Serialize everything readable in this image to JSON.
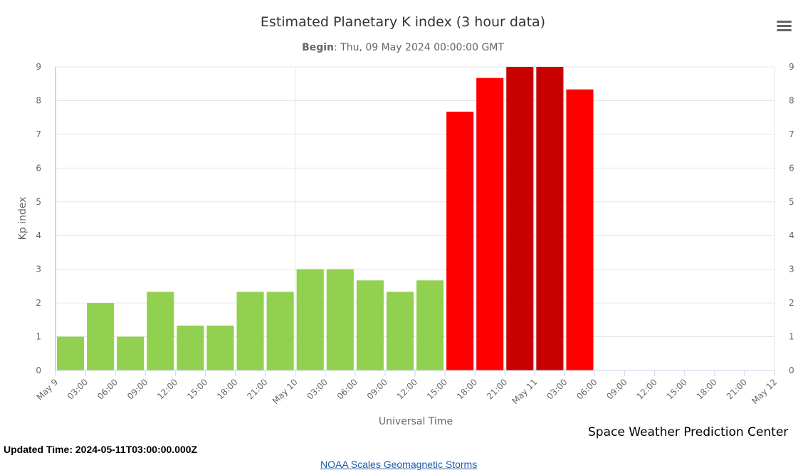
{
  "chart_data": {
    "type": "bar",
    "title": "Estimated Planetary K index (3 hour data)",
    "subtitle_label": "Begin",
    "subtitle_value": "Thu, 09 May 2024 00:00:00 GMT",
    "xlabel": "Universal Time",
    "ylabel": "Kp index",
    "ylim": [
      0,
      9
    ],
    "yticks": [
      0,
      1,
      2,
      3,
      4,
      5,
      6,
      7,
      8,
      9
    ],
    "x_tick_labels": [
      "May 9",
      "03:00",
      "06:00",
      "09:00",
      "12:00",
      "15:00",
      "18:00",
      "21:00",
      "May 10",
      "03:00",
      "06:00",
      "09:00",
      "12:00",
      "15:00",
      "18:00",
      "21:00",
      "May 11",
      "03:00",
      "06:00",
      "09:00",
      "12:00",
      "15:00",
      "18:00",
      "21:00",
      "May 12"
    ],
    "values": [
      1.0,
      2.0,
      1.0,
      2.33,
      1.33,
      1.33,
      2.33,
      2.33,
      3.0,
      3.0,
      2.67,
      2.33,
      2.67,
      7.67,
      8.67,
      9.0,
      9.0,
      8.33
    ],
    "bar_colors": [
      "#92d050",
      "#92d050",
      "#92d050",
      "#92d050",
      "#92d050",
      "#92d050",
      "#92d050",
      "#92d050",
      "#92d050",
      "#92d050",
      "#92d050",
      "#92d050",
      "#92d050",
      "#ff0000",
      "#ff0000",
      "#c80000",
      "#c80000",
      "#ff0000"
    ],
    "grid": true,
    "legend": "none"
  },
  "footer": {
    "updated_label": "Updated Time:",
    "updated_value": "2024-05-11T03:00:00.000Z",
    "credit": "Space Weather Prediction Center",
    "link_text": "NOAA Scales Geomagnetic Storms"
  },
  "menu_icon": "hamburger-menu-icon"
}
